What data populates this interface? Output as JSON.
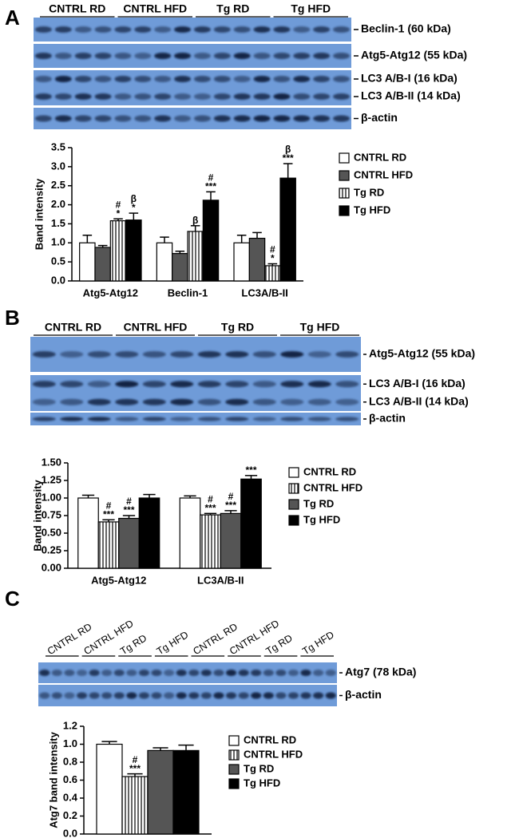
{
  "panels": [
    {
      "label": "A",
      "groups": [
        "CNTRL RD",
        "CNTRL HFD",
        "Tg RD",
        "Tg HFD"
      ],
      "strips": [
        {
          "labels": [
            "Beclin-1 (60 kDa)"
          ]
        },
        {
          "labels": [
            "Atg5-Atg12 (55 kDa)"
          ]
        },
        {
          "labels": [
            "LC3 A/B-I (16 kDa)",
            "LC3 A/B-II (14 kDa)"
          ]
        },
        {
          "labels": [
            "β-actin"
          ]
        }
      ]
    },
    {
      "label": "B",
      "groups": [
        "CNTRL RD",
        "CNTRL HFD",
        "Tg RD",
        "Tg HFD"
      ],
      "strips": [
        {
          "labels": [
            "Atg5-Atg12 (55 kDa)"
          ]
        },
        {
          "labels": [
            "LC3 A/B-I (16 kDa)",
            "LC3 A/B-II (14 kDa)"
          ]
        },
        {
          "labels": [
            "β-actin"
          ]
        }
      ]
    },
    {
      "label": "C",
      "groups": [
        "CNTRL RD",
        "CNTRL HFD",
        "Tg RD",
        "Tg HFD",
        "CNTRL RD",
        "CNTRL HFD",
        "Tg RD",
        "Tg HFD"
      ],
      "strips": [
        {
          "labels": [
            "Atg7 (78 kDa)"
          ]
        },
        {
          "labels": [
            "β-actin"
          ]
        }
      ]
    }
  ],
  "chart_data": [
    {
      "type": "bar",
      "y_label": "Band intensity",
      "categories": [
        "Atg5-Atg12",
        "Beclin-1",
        "LC3A/B-II"
      ],
      "ylim": [
        0,
        3.5
      ],
      "yticks": [
        {
          "value": 0,
          "label": "0.0"
        },
        0.5,
        {
          "value": 1,
          "label": "1.0"
        },
        1.5,
        {
          "value": 2,
          "label": "2.0"
        },
        2.5,
        {
          "value": 3,
          "label": "3.0"
        },
        3.5
      ],
      "series": [
        {
          "name": "CNTRL RD",
          "color": "#ffffff",
          "values": [
            1.0,
            1.0,
            1.0
          ],
          "errors": [
            0.2,
            0.15,
            0.2
          ],
          "annotations": [
            null,
            null,
            null
          ]
        },
        {
          "name": "CNTRL HFD",
          "color": "#555555",
          "values": [
            0.88,
            0.72,
            1.12
          ],
          "errors": [
            0.05,
            0.06,
            0.15
          ],
          "annotations": [
            null,
            null,
            null
          ]
        },
        {
          "name": "Tg RD",
          "color": "#ffffff",
          "pattern": "vertical-stripes",
          "values": [
            1.58,
            1.3,
            0.4
          ],
          "errors": [
            0.05,
            0.15,
            0.05
          ],
          "annotations": [
            [
              "#",
              "*"
            ],
            [
              "β"
            ],
            [
              "#",
              "*"
            ]
          ]
        },
        {
          "name": "Tg HFD",
          "color": "#000000",
          "values": [
            1.6,
            2.12,
            2.7
          ],
          "errors": [
            0.18,
            0.22,
            0.38
          ],
          "annotations": [
            [
              "β",
              "*"
            ],
            [
              "#",
              "***"
            ],
            [
              "β",
              "***"
            ]
          ]
        }
      ]
    },
    {
      "type": "bar",
      "y_label": "Band intensity",
      "categories": [
        "Atg5-Atg12",
        "LC3A/B-II"
      ],
      "ylim": [
        0,
        1.5
      ],
      "yticks": [
        {
          "value": 0,
          "label": "0.00"
        },
        0.25,
        {
          "value": 0.5,
          "label": "0.50"
        },
        0.75,
        {
          "value": 1,
          "label": "1.00"
        },
        1.25,
        {
          "value": 1.5,
          "label": "1.50"
        }
      ],
      "series": [
        {
          "name": "CNTRL RD",
          "color": "#ffffff",
          "values": [
            1.0,
            1.0
          ],
          "errors": [
            0.04,
            0.03
          ],
          "annotations": [
            null,
            null
          ]
        },
        {
          "name": "CNTRL HFD",
          "color": "#ffffff",
          "pattern": "vertical-stripes",
          "values": [
            0.66,
            0.76
          ],
          "errors": [
            0.03,
            0.02
          ],
          "annotations": [
            [
              "#",
              "***"
            ],
            [
              "#",
              "***"
            ]
          ]
        },
        {
          "name": "Tg RD",
          "color": "#555555",
          "values": [
            0.71,
            0.78
          ],
          "errors": [
            0.04,
            0.04
          ],
          "annotations": [
            [
              "#",
              "***"
            ],
            [
              "#",
              "***"
            ]
          ]
        },
        {
          "name": "Tg HFD",
          "color": "#000000",
          "values": [
            1.0,
            1.27
          ],
          "errors": [
            0.05,
            0.05
          ],
          "annotations": [
            null,
            [
              "***"
            ]
          ]
        }
      ]
    },
    {
      "type": "bar",
      "y_label": "Atg7 band intensity",
      "categories": [
        null
      ],
      "ylim": [
        0,
        1.2
      ],
      "yticks": [
        {
          "value": 0,
          "label": "0.0"
        },
        0.2,
        0.4,
        0.6,
        0.8,
        {
          "value": 1,
          "label": "1.0"
        },
        1.2
      ],
      "series": [
        {
          "name": "CNTRL RD",
          "color": "#ffffff",
          "values": [
            1.0
          ],
          "errors": [
            0.03
          ],
          "annotations": [
            null
          ]
        },
        {
          "name": "CNTRL HFD",
          "color": "#ffffff",
          "pattern": "vertical-stripes",
          "values": [
            0.64
          ],
          "errors": [
            0.03
          ],
          "annotations": [
            [
              "#",
              "***"
            ]
          ]
        },
        {
          "name": "Tg RD",
          "color": "#555555",
          "values": [
            0.93
          ],
          "errors": [
            0.03
          ],
          "annotations": [
            null
          ]
        },
        {
          "name": "Tg HFD",
          "color": "#000000",
          "values": [
            0.93
          ],
          "errors": [
            0.06
          ],
          "annotations": [
            null
          ]
        }
      ]
    }
  ]
}
